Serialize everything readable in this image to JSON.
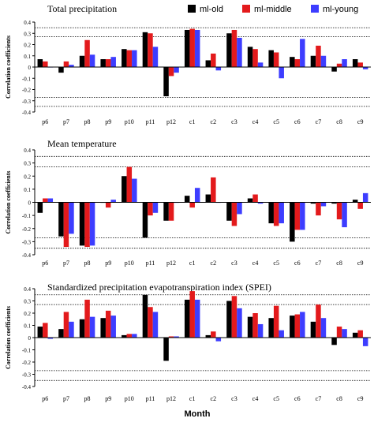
{
  "colors": {
    "ml-old": "#000000",
    "ml-middle": "#e31a1c",
    "ml-young": "#3d3dff"
  },
  "legend": [
    "ml-old",
    "ml-middle",
    "ml-young"
  ],
  "xlabel": "Month",
  "chart_data": [
    {
      "type": "bar",
      "title": "Total precipitation",
      "ylabel": "Correlation coefficients",
      "ylim": [
        -0.4,
        0.4
      ],
      "yticks": [
        "0.4",
        "0.3",
        "0.2",
        "0.1",
        "0",
        "-0.1",
        "-0.2",
        "-0.3",
        "-0.4"
      ],
      "threshold_lines": [
        0.35,
        0.27,
        -0.27,
        -0.35
      ],
      "categories": [
        "p6",
        "p7",
        "p8",
        "p9",
        "p10",
        "p11",
        "p12",
        "c1",
        "c2",
        "c3",
        "c4",
        "c5",
        "c6",
        "c7",
        "c8",
        "c9"
      ],
      "series": [
        {
          "name": "ml-old",
          "values": [
            0.07,
            -0.05,
            0.1,
            0.07,
            0.16,
            0.31,
            -0.26,
            0.33,
            0.06,
            0.3,
            0.18,
            0.15,
            0.09,
            0.1,
            -0.04,
            0.07
          ]
        },
        {
          "name": "ml-middle",
          "values": [
            0.05,
            0.05,
            0.24,
            0.07,
            0.15,
            0.3,
            -0.08,
            0.34,
            0.12,
            0.33,
            0.16,
            0.13,
            0.07,
            0.19,
            0.03,
            0.04
          ]
        },
        {
          "name": "ml-young",
          "values": [
            0.0,
            0.02,
            0.11,
            0.09,
            0.15,
            0.18,
            -0.05,
            0.33,
            -0.03,
            0.26,
            0.04,
            -0.1,
            0.25,
            0.1,
            0.07,
            -0.02
          ]
        }
      ]
    },
    {
      "type": "bar",
      "title": "Mean temperature",
      "ylabel": "Correlation coefficients",
      "ylim": [
        -0.4,
        0.4
      ],
      "yticks": [
        "0.4",
        "0.3",
        "0.2",
        "0.1",
        "0",
        "-0.1",
        "-0.2",
        "-0.3",
        "-0.4"
      ],
      "threshold_lines": [
        0.35,
        0.27,
        -0.27,
        -0.35
      ],
      "categories": [
        "p6",
        "p7",
        "p8",
        "p9",
        "p10",
        "p11",
        "p12",
        "c1",
        "c2",
        "c3",
        "c4",
        "c5",
        "c6",
        "c7",
        "c8",
        "c9"
      ],
      "series": [
        {
          "name": "ml-old",
          "values": [
            -0.08,
            -0.26,
            -0.33,
            0.0,
            0.2,
            -0.27,
            -0.14,
            0.05,
            0.06,
            -0.14,
            0.03,
            -0.16,
            -0.3,
            -0.01,
            -0.01,
            0.02
          ]
        },
        {
          "name": "ml-middle",
          "values": [
            0.03,
            -0.34,
            -0.34,
            -0.04,
            0.27,
            -0.1,
            -0.14,
            -0.04,
            0.19,
            -0.18,
            0.06,
            -0.18,
            -0.21,
            -0.1,
            -0.13,
            -0.05
          ]
        },
        {
          "name": "ml-young",
          "values": [
            0.03,
            -0.24,
            -0.33,
            0.02,
            0.18,
            -0.08,
            0.0,
            0.11,
            0.0,
            -0.09,
            -0.01,
            -0.16,
            -0.21,
            -0.03,
            -0.19,
            0.07
          ]
        }
      ]
    },
    {
      "type": "bar",
      "title": "Standardized precipitation evapotranspiration index (SPEI)",
      "ylabel": "Correlation coefficients",
      "ylim": [
        -0.4,
        0.4
      ],
      "yticks": [
        "0.4",
        "0.3",
        "0.2",
        "0.1",
        "0",
        "-0.1",
        "-0.2",
        "-0.3",
        "-0.4"
      ],
      "threshold_lines": [
        0.35,
        0.27,
        -0.27,
        -0.35
      ],
      "categories": [
        "p6",
        "p7",
        "p8",
        "p9",
        "p10",
        "p11",
        "p12",
        "c1",
        "c2",
        "c3",
        "c4",
        "c5",
        "c6",
        "c7",
        "c8",
        "c9"
      ],
      "series": [
        {
          "name": "ml-old",
          "values": [
            0.09,
            0.07,
            0.15,
            0.16,
            0.02,
            0.35,
            -0.19,
            0.31,
            0.02,
            0.3,
            0.17,
            0.16,
            0.18,
            0.13,
            -0.06,
            0.04
          ]
        },
        {
          "name": "ml-middle",
          "values": [
            0.12,
            0.21,
            0.31,
            0.22,
            0.03,
            0.25,
            0.01,
            0.38,
            0.05,
            0.34,
            0.2,
            0.26,
            0.19,
            0.27,
            0.09,
            0.06
          ]
        },
        {
          "name": "ml-young",
          "values": [
            -0.01,
            0.13,
            0.17,
            0.18,
            0.03,
            0.21,
            0.01,
            0.31,
            -0.03,
            0.24,
            0.11,
            0.06,
            0.21,
            0.16,
            0.07,
            -0.07
          ]
        }
      ]
    }
  ]
}
